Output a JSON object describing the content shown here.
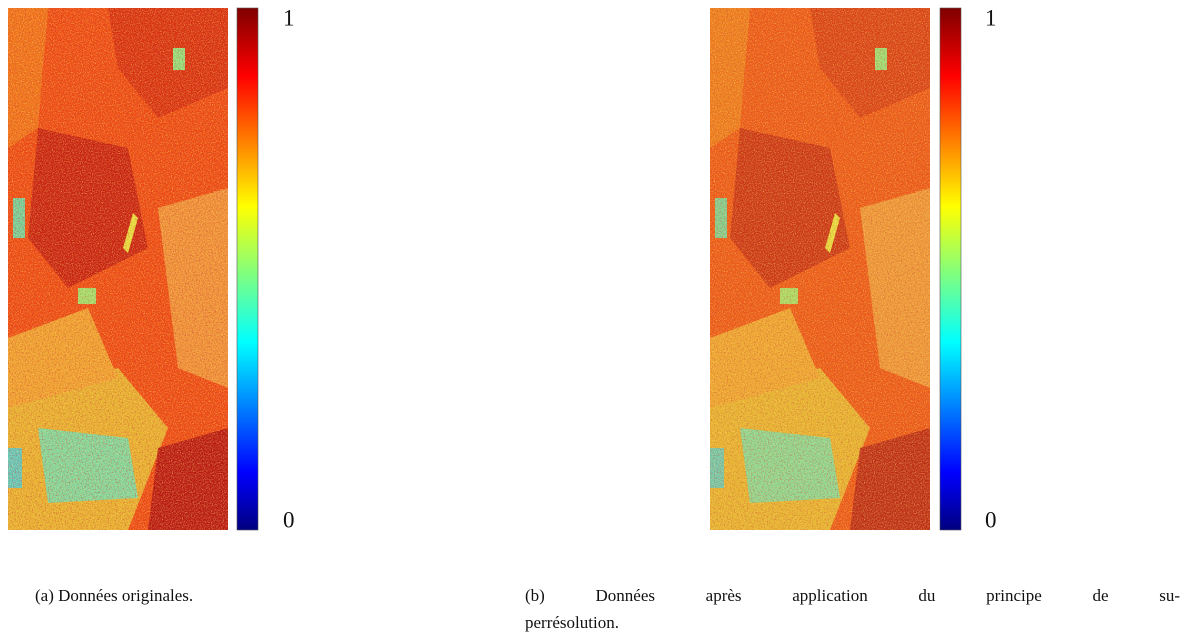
{
  "figures": [
    {
      "colorbar_ticks": [
        0,
        1
      ],
      "caption": "(a) Données originales."
    },
    {
      "colorbar_ticks": [
        0,
        1
      ],
      "caption_lines": [
        "(b) Données après application du principe de su-",
        "perrésolution."
      ]
    }
  ]
}
